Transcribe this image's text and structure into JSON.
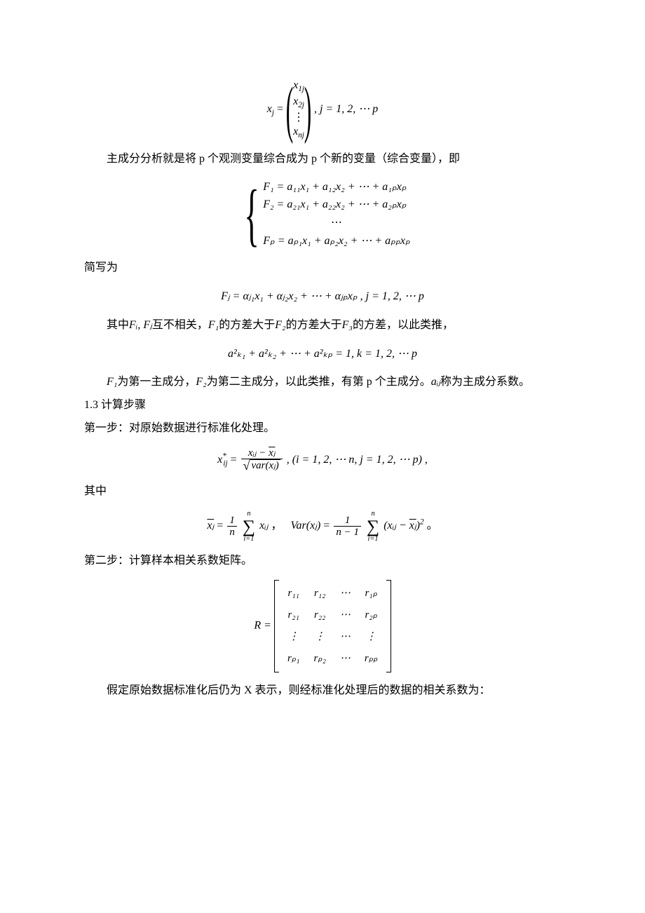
{
  "eq1": {
    "left": "x",
    "left_sub": "j",
    "entries": [
      "x",
      "x",
      "⋮",
      "x"
    ],
    "entry_subs": [
      "1j",
      "2j",
      "",
      "nj"
    ],
    "tail": ", j = 1, 2, ⋯ p"
  },
  "para1": "主成分分析就是将 p 个观测变量综合成为 p 个新的变量（综合变量），即",
  "eq2": {
    "rows": [
      "F₁ = a₁₁x₁ + a₁₂x₂ + ⋯ + a₁ₚxₚ",
      "F₂ = a₂₁x₁ + a₂₂x₂ + ⋯ + a₂ₚxₚ",
      "⋯",
      "Fₚ = aₚ₁x₁ + aₚ₂x₂ + ⋯ + aₚₚxₚ"
    ]
  },
  "para2": "简写为",
  "eq3": "Fⱼ = αⱼ₁x₁ + αⱼ₂x₂ + ⋯ + αⱼₚxₚ , j = 1, 2, ⋯ p",
  "para3_pre": "其中",
  "para3_fi": "Fᵢ, Fⱼ",
  "para3_a": "互不相关，",
  "para3_f1": "F₁",
  "para3_b": "的方差大于",
  "para3_f2": "F₂",
  "para3_c": "的方差大于",
  "para3_f3": "F₃",
  "para3_d": "的方差，以此类推，",
  "eq4": "a²ₖ₁ + a²ₖ₂ + ⋯ + a²ₖₚ = 1, k = 1, 2, ⋯ p",
  "para4_a": "F₁",
  "para4_b": "为第一主成分，",
  "para4_c": "F₂",
  "para4_d": "为第二主成分，以此类推，有第 p 个主成分。",
  "para4_e": "aᵢⱼ",
  "para4_f": "称为主成分系数。",
  "sec13": "1.3 计算步骤",
  "step1": "第一步：对原始数据进行标准化处理。",
  "eq5": {
    "lhs": "x",
    "lhs_sub": "ij",
    "lhs_sup": "*",
    "num_a": "xᵢⱼ − ",
    "num_b": "xⱼ",
    "den_inner": "var(xⱼ)",
    "tail": ", (i = 1, 2, ⋯ n, j = 1, 2, ⋯ p) ,"
  },
  "para5": "其中",
  "eq6": {
    "mean_lhs": "xⱼ",
    "mean_frac_num": "1",
    "mean_frac_den": "n",
    "mean_sum_top": "n",
    "mean_sum_bot": "i=1",
    "mean_term": "xᵢⱼ",
    "var_lhs": "Var(xⱼ)",
    "var_frac_num": "1",
    "var_frac_den": "n − 1",
    "var_sum_top": "n",
    "var_sum_bot": "i=1",
    "var_term_a": "(xᵢⱼ − ",
    "var_term_b": "xⱼ",
    "var_term_c": ")",
    "var_exp": "2",
    "end": "。"
  },
  "step2": "第二步：计算样本相关系数矩阵。",
  "eq7": {
    "lhs": "R =",
    "rows": [
      [
        "r₁₁",
        "r₁₂",
        "⋯",
        "r₁ₚ"
      ],
      [
        "r₂₁",
        "r₂₂",
        "⋯",
        "r₂ₚ"
      ],
      [
        "⋮",
        "⋮",
        "⋯",
        "⋮"
      ],
      [
        "rₚ₁",
        "rₚ₂",
        "⋯",
        "rₚₚ"
      ]
    ]
  },
  "para6": "假定原始数据标准化后仍为 X 表示，则经标准化处理后的数据的相关系数为："
}
